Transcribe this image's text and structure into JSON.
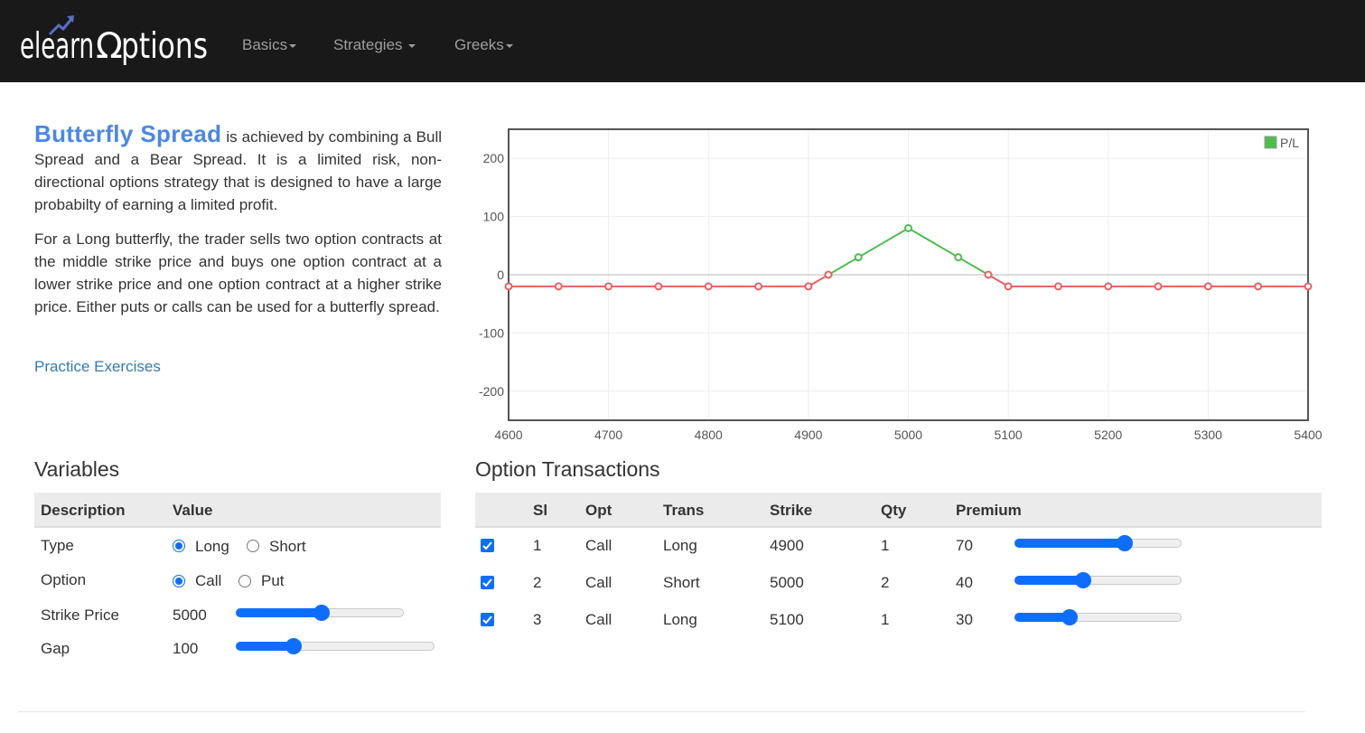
{
  "brand": {
    "logo_text": "elearnoptions"
  },
  "nav": {
    "items": [
      {
        "label": "Basics"
      },
      {
        "label": "Strategies "
      },
      {
        "label": "Greeks"
      }
    ]
  },
  "intro": {
    "strategy_name": "Butterfly Spread",
    "p1_rest": " is achieved by combining a Bull Spread and a Bear Spread. It is a limited risk, non-directional options strategy that is designed to have a large probabilty of earning a limited profit.",
    "p2": "For a Long butterfly, the trader sells two option contracts at the middle strike price and buys one option contract at a lower strike price and one option contract at a higher strike price. Either puts or calls can be used for a butterfly spread.",
    "practice_link": "Practice Exercises"
  },
  "colors": {
    "accent": "#4a87e8",
    "link": "#337ab7",
    "profit": "#4bbf4b",
    "loss": "#e86060",
    "control": "#0d6efd",
    "navbar_bg": "#191919"
  },
  "chart_data": {
    "type": "line",
    "title": "",
    "xlabel": "",
    "ylabel": "",
    "xlim": [
      4600,
      5400
    ],
    "ylim": [
      -250,
      250
    ],
    "x_ticks": [
      4600,
      4700,
      4800,
      4900,
      5000,
      5100,
      5200,
      5300,
      5400
    ],
    "y_ticks": [
      200,
      100,
      0,
      -100,
      -200
    ],
    "legend": {
      "position": "top-right",
      "entries": [
        "P/L"
      ]
    },
    "grid": true,
    "series": [
      {
        "name": "P/L",
        "x": [
          4600,
          4650,
          4700,
          4750,
          4800,
          4850,
          4900,
          4920,
          4950,
          5000,
          5050,
          5080,
          5100,
          5150,
          5200,
          5250,
          5300,
          5350,
          5400
        ],
        "y": [
          -20,
          -20,
          -20,
          -20,
          -20,
          -20,
          -20,
          0,
          30,
          80,
          30,
          0,
          -20,
          -20,
          -20,
          -20,
          -20,
          -20,
          -20
        ]
      }
    ]
  },
  "variables": {
    "title": "Variables",
    "headers": {
      "description": "Description",
      "value": "Value"
    },
    "type": {
      "label": "Type",
      "options": [
        "Long",
        "Short"
      ],
      "selected": "Long"
    },
    "option": {
      "label": "Option",
      "options": [
        "Call",
        "Put"
      ],
      "selected": "Call"
    },
    "strike": {
      "label": "Strike Price",
      "value": "5000",
      "level": 0.51
    },
    "gap": {
      "label": "Gap",
      "value": "100",
      "level": 0.27
    }
  },
  "transactions": {
    "title": "Option Transactions",
    "headers": [
      "Sl",
      "Opt",
      "Trans",
      "Strike",
      "Qty",
      "Premium"
    ],
    "rows": [
      {
        "checked": true,
        "sl": "1",
        "opt": "Call",
        "trans": "Long",
        "strike": "4900",
        "qty": "1",
        "premium": "70",
        "level": 0.68
      },
      {
        "checked": true,
        "sl": "2",
        "opt": "Call",
        "trans": "Short",
        "strike": "5000",
        "qty": "2",
        "premium": "40",
        "level": 0.4
      },
      {
        "checked": true,
        "sl": "3",
        "opt": "Call",
        "trans": "Long",
        "strike": "5100",
        "qty": "1",
        "premium": "30",
        "level": 0.31
      }
    ]
  }
}
